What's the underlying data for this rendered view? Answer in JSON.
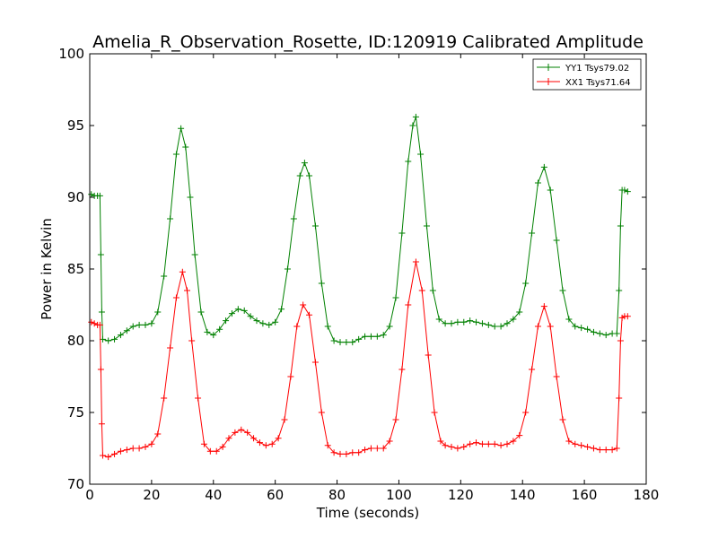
{
  "chart_data": {
    "type": "line",
    "title": "Amelia_R_Observation_Rosette, ID:120919 Calibrated Amplitude",
    "xlabel": "Time (seconds)",
    "ylabel": "Power in Kelvin",
    "xlim": [
      0,
      180
    ],
    "ylim": [
      70,
      100
    ],
    "xticks": [
      0,
      20,
      40,
      60,
      80,
      100,
      120,
      140,
      160,
      180
    ],
    "yticks": [
      70,
      75,
      80,
      85,
      90,
      95,
      100
    ],
    "grid": false,
    "legend_position": "top-right",
    "marker": "+",
    "series": [
      {
        "name": "YY1 Tsys79.02",
        "color": "#008000",
        "points": [
          [
            0.5,
            90.2
          ],
          [
            1.5,
            90.1
          ],
          [
            2.5,
            90.1
          ],
          [
            3.3,
            90.1
          ],
          [
            3.6,
            86.0
          ],
          [
            3.9,
            82.0
          ],
          [
            4.2,
            80.1
          ],
          [
            6,
            80.0
          ],
          [
            8,
            80.1
          ],
          [
            10,
            80.4
          ],
          [
            12,
            80.7
          ],
          [
            14,
            81.0
          ],
          [
            16,
            81.1
          ],
          [
            18,
            81.1
          ],
          [
            20,
            81.2
          ],
          [
            22,
            82.0
          ],
          [
            24,
            84.5
          ],
          [
            26,
            88.5
          ],
          [
            28,
            93.0
          ],
          [
            29.5,
            94.8
          ],
          [
            31,
            93.5
          ],
          [
            32.5,
            90.0
          ],
          [
            34,
            86.0
          ],
          [
            36,
            82.0
          ],
          [
            38,
            80.6
          ],
          [
            40,
            80.4
          ],
          [
            42,
            80.8
          ],
          [
            44,
            81.4
          ],
          [
            46,
            81.9
          ],
          [
            48,
            82.2
          ],
          [
            50,
            82.1
          ],
          [
            52,
            81.7
          ],
          [
            54,
            81.4
          ],
          [
            56,
            81.2
          ],
          [
            58,
            81.1
          ],
          [
            60,
            81.3
          ],
          [
            62,
            82.2
          ],
          [
            64,
            85.0
          ],
          [
            66,
            88.5
          ],
          [
            68,
            91.5
          ],
          [
            69.5,
            92.4
          ],
          [
            71,
            91.5
          ],
          [
            73,
            88.0
          ],
          [
            75,
            84.0
          ],
          [
            77,
            81.0
          ],
          [
            79,
            80.0
          ],
          [
            81,
            79.9
          ],
          [
            83,
            79.9
          ],
          [
            85,
            79.9
          ],
          [
            87,
            80.1
          ],
          [
            89,
            80.3
          ],
          [
            91,
            80.3
          ],
          [
            93,
            80.3
          ],
          [
            95,
            80.4
          ],
          [
            97,
            81.0
          ],
          [
            99,
            83.0
          ],
          [
            101,
            87.5
          ],
          [
            103,
            92.5
          ],
          [
            104.5,
            95.0
          ],
          [
            105.5,
            95.6
          ],
          [
            107,
            93.0
          ],
          [
            109,
            88.0
          ],
          [
            111,
            83.5
          ],
          [
            113,
            81.5
          ],
          [
            115,
            81.2
          ],
          [
            117,
            81.2
          ],
          [
            119,
            81.3
          ],
          [
            121,
            81.3
          ],
          [
            123,
            81.4
          ],
          [
            125,
            81.3
          ],
          [
            127,
            81.2
          ],
          [
            129,
            81.1
          ],
          [
            131,
            81.0
          ],
          [
            133,
            81.0
          ],
          [
            135,
            81.2
          ],
          [
            137,
            81.5
          ],
          [
            139,
            82.0
          ],
          [
            141,
            84.0
          ],
          [
            143,
            87.5
          ],
          [
            145,
            91.0
          ],
          [
            147,
            92.1
          ],
          [
            149,
            90.5
          ],
          [
            151,
            87.0
          ],
          [
            153,
            83.5
          ],
          [
            155,
            81.5
          ],
          [
            157,
            81.0
          ],
          [
            159,
            80.9
          ],
          [
            161,
            80.8
          ],
          [
            163,
            80.6
          ],
          [
            165,
            80.5
          ],
          [
            167,
            80.4
          ],
          [
            169,
            80.5
          ],
          [
            170.5,
            80.5
          ],
          [
            171.2,
            83.5
          ],
          [
            171.7,
            88.0
          ],
          [
            172.2,
            90.5
          ],
          [
            173,
            90.5
          ],
          [
            174,
            90.4
          ]
        ]
      },
      {
        "name": "XX1 Tsys71.64",
        "color": "#ff0000",
        "points": [
          [
            0.5,
            81.3
          ],
          [
            1.5,
            81.2
          ],
          [
            2.5,
            81.1
          ],
          [
            3.3,
            81.1
          ],
          [
            3.6,
            78.0
          ],
          [
            3.9,
            74.2
          ],
          [
            4.2,
            72.0
          ],
          [
            6,
            71.9
          ],
          [
            8,
            72.1
          ],
          [
            10,
            72.3
          ],
          [
            12,
            72.4
          ],
          [
            14,
            72.5
          ],
          [
            16,
            72.5
          ],
          [
            18,
            72.6
          ],
          [
            20,
            72.8
          ],
          [
            22,
            73.5
          ],
          [
            24,
            76.0
          ],
          [
            26,
            79.5
          ],
          [
            28,
            83.0
          ],
          [
            30,
            84.8
          ],
          [
            31.5,
            83.5
          ],
          [
            33,
            80.0
          ],
          [
            35,
            76.0
          ],
          [
            37,
            72.8
          ],
          [
            39,
            72.3
          ],
          [
            41,
            72.3
          ],
          [
            43,
            72.6
          ],
          [
            45,
            73.2
          ],
          [
            47,
            73.6
          ],
          [
            49,
            73.8
          ],
          [
            51,
            73.6
          ],
          [
            53,
            73.2
          ],
          [
            55,
            72.9
          ],
          [
            57,
            72.7
          ],
          [
            59,
            72.8
          ],
          [
            61,
            73.2
          ],
          [
            63,
            74.5
          ],
          [
            65,
            77.5
          ],
          [
            67,
            81.0
          ],
          [
            69,
            82.5
          ],
          [
            71,
            81.8
          ],
          [
            73,
            78.5
          ],
          [
            75,
            75.0
          ],
          [
            77,
            72.7
          ],
          [
            79,
            72.2
          ],
          [
            81,
            72.1
          ],
          [
            83,
            72.1
          ],
          [
            85,
            72.2
          ],
          [
            87,
            72.2
          ],
          [
            89,
            72.4
          ],
          [
            91,
            72.5
          ],
          [
            93,
            72.5
          ],
          [
            95,
            72.5
          ],
          [
            97,
            73.0
          ],
          [
            99,
            74.5
          ],
          [
            101,
            78.0
          ],
          [
            103,
            82.5
          ],
          [
            105.5,
            85.5
          ],
          [
            107.5,
            83.5
          ],
          [
            109.5,
            79.0
          ],
          [
            111.5,
            75.0
          ],
          [
            113.5,
            73.0
          ],
          [
            115,
            72.7
          ],
          [
            117,
            72.6
          ],
          [
            119,
            72.5
          ],
          [
            121,
            72.6
          ],
          [
            123,
            72.8
          ],
          [
            125,
            72.9
          ],
          [
            127,
            72.8
          ],
          [
            129,
            72.8
          ],
          [
            131,
            72.8
          ],
          [
            133,
            72.7
          ],
          [
            135,
            72.8
          ],
          [
            137,
            73.0
          ],
          [
            139,
            73.4
          ],
          [
            141,
            75.0
          ],
          [
            143,
            78.0
          ],
          [
            145,
            81.0
          ],
          [
            147,
            82.4
          ],
          [
            149,
            81.0
          ],
          [
            151,
            77.5
          ],
          [
            153,
            74.5
          ],
          [
            155,
            73.0
          ],
          [
            157,
            72.8
          ],
          [
            159,
            72.7
          ],
          [
            161,
            72.6
          ],
          [
            163,
            72.5
          ],
          [
            165,
            72.4
          ],
          [
            167,
            72.4
          ],
          [
            169,
            72.4
          ],
          [
            170.5,
            72.5
          ],
          [
            171.2,
            76.0
          ],
          [
            171.7,
            80.0
          ],
          [
            172.2,
            81.6
          ],
          [
            173,
            81.7
          ],
          [
            174,
            81.7
          ]
        ]
      }
    ]
  }
}
